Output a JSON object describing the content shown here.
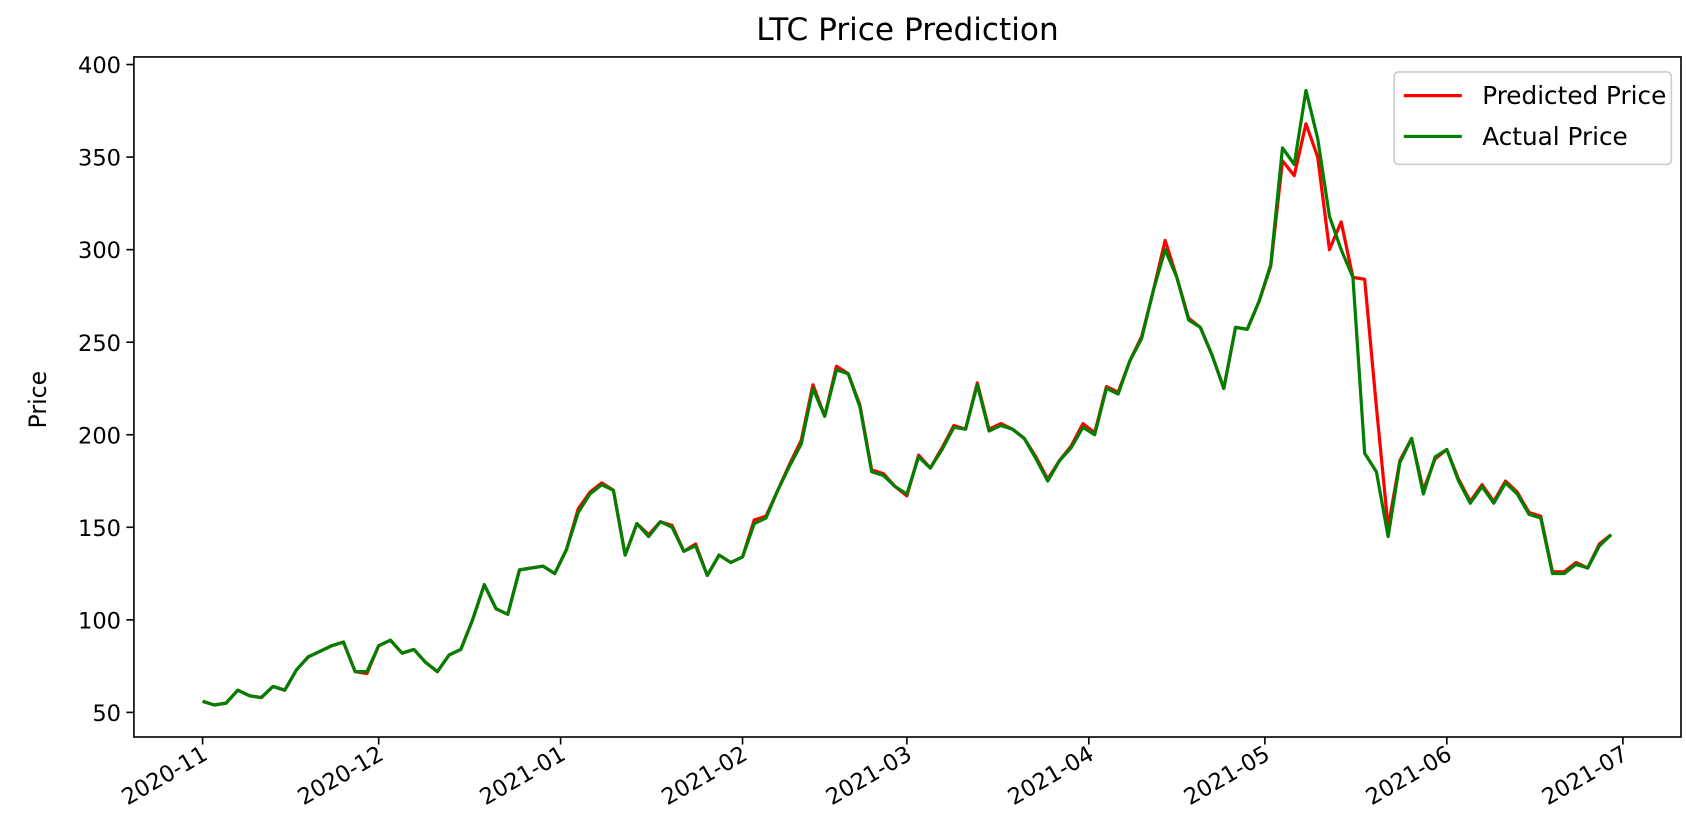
{
  "chart_data": {
    "type": "line",
    "title": "LTC Price Prediction",
    "y_label": "Price",
    "x": [
      0,
      2,
      4,
      6,
      8,
      10,
      12,
      14,
      16,
      18,
      20,
      22,
      24,
      26,
      28,
      30,
      32,
      34,
      36,
      38,
      40,
      42,
      44,
      46,
      48,
      50,
      52,
      54,
      56,
      58,
      60,
      62,
      64,
      66,
      68,
      70,
      72,
      74,
      76,
      78,
      80,
      82,
      84,
      86,
      88,
      90,
      92,
      94,
      96,
      98,
      100,
      102,
      104,
      106,
      108,
      110,
      112,
      114,
      116,
      118,
      120,
      122,
      124,
      126,
      128,
      130,
      132,
      134,
      136,
      138,
      140,
      142,
      144,
      146,
      148,
      150,
      152,
      154,
      156,
      158,
      160,
      162,
      164,
      166,
      168,
      170,
      172,
      174,
      176,
      178,
      180,
      182,
      184,
      186,
      188,
      190,
      192,
      194,
      196,
      198,
      200,
      202,
      204,
      206,
      208,
      210,
      212,
      214,
      216,
      218,
      220,
      222,
      224,
      226,
      228,
      230,
      232,
      234,
      236,
      238,
      240
    ],
    "series": [
      {
        "name": "Predicted Price",
        "color": "#ff0000",
        "values": [
          56,
          54,
          55,
          62,
          59,
          58,
          64,
          62,
          73,
          80,
          83,
          86,
          88,
          72,
          71,
          86,
          89,
          82,
          84,
          77,
          72,
          81,
          84,
          100,
          119,
          106,
          103,
          127,
          128,
          129,
          125,
          138,
          160,
          169,
          174,
          170,
          135,
          152,
          146,
          153,
          151,
          137,
          141,
          124,
          135,
          131,
          134,
          154,
          156,
          170,
          184,
          197,
          227,
          210,
          237,
          233,
          216,
          181,
          179,
          172,
          167,
          189,
          182,
          193,
          205,
          203,
          228,
          203,
          206,
          203,
          198,
          188,
          176,
          186,
          194,
          206,
          201,
          226,
          223,
          240,
          253,
          278,
          305,
          285,
          263,
          258,
          243,
          225,
          258,
          257,
          272,
          291,
          348,
          340,
          368,
          350,
          300,
          315,
          285,
          284,
          215,
          150,
          186,
          198,
          170,
          187,
          192,
          176,
          164,
          173,
          164,
          175,
          169,
          158,
          156,
          126,
          126,
          131,
          128,
          141,
          146
        ]
      },
      {
        "name": "Actual Price",
        "color": "#007f00",
        "values": [
          56,
          54,
          55,
          62,
          59,
          58,
          64,
          62,
          73,
          80,
          83,
          86,
          88,
          72,
          72,
          86,
          89,
          82,
          84,
          77,
          72,
          81,
          84,
          100,
          119,
          106,
          103,
          127,
          128,
          129,
          125,
          138,
          158,
          168,
          173,
          170,
          135,
          152,
          145,
          153,
          150,
          137,
          140,
          124,
          135,
          131,
          134,
          152,
          155,
          170,
          183,
          195,
          225,
          210,
          235,
          233,
          215,
          180,
          178,
          172,
          168,
          188,
          182,
          192,
          204,
          203,
          227,
          202,
          205,
          203,
          198,
          187,
          175,
          186,
          193,
          204,
          200,
          225,
          222,
          240,
          252,
          278,
          300,
          285,
          262,
          258,
          243,
          225,
          258,
          257,
          272,
          292,
          355,
          346,
          386,
          360,
          318,
          300,
          285,
          190,
          180,
          145,
          185,
          198,
          168,
          188,
          192,
          175,
          163,
          172,
          163,
          174,
          168,
          157,
          155,
          125,
          125,
          130,
          128,
          140,
          146
        ]
      }
    ],
    "xlim": [
      -11.7,
      251.9
    ],
    "xticks": [
      {
        "value": 0,
        "label": "2020-11"
      },
      {
        "value": 30,
        "label": "2020-12"
      },
      {
        "value": 61,
        "label": "2021-01"
      },
      {
        "value": 92,
        "label": "2021-02"
      },
      {
        "value": 120,
        "label": "2021-03"
      },
      {
        "value": 151,
        "label": "2021-04"
      },
      {
        "value": 181,
        "label": "2021-05"
      },
      {
        "value": 212,
        "label": "2021-06"
      },
      {
        "value": 242,
        "label": "2021-07"
      }
    ],
    "ylim": [
      36.7,
      404.1
    ],
    "yticks": [
      50,
      100,
      150,
      200,
      250,
      300,
      350,
      400
    ],
    "grid": false,
    "legend": "upper right"
  }
}
